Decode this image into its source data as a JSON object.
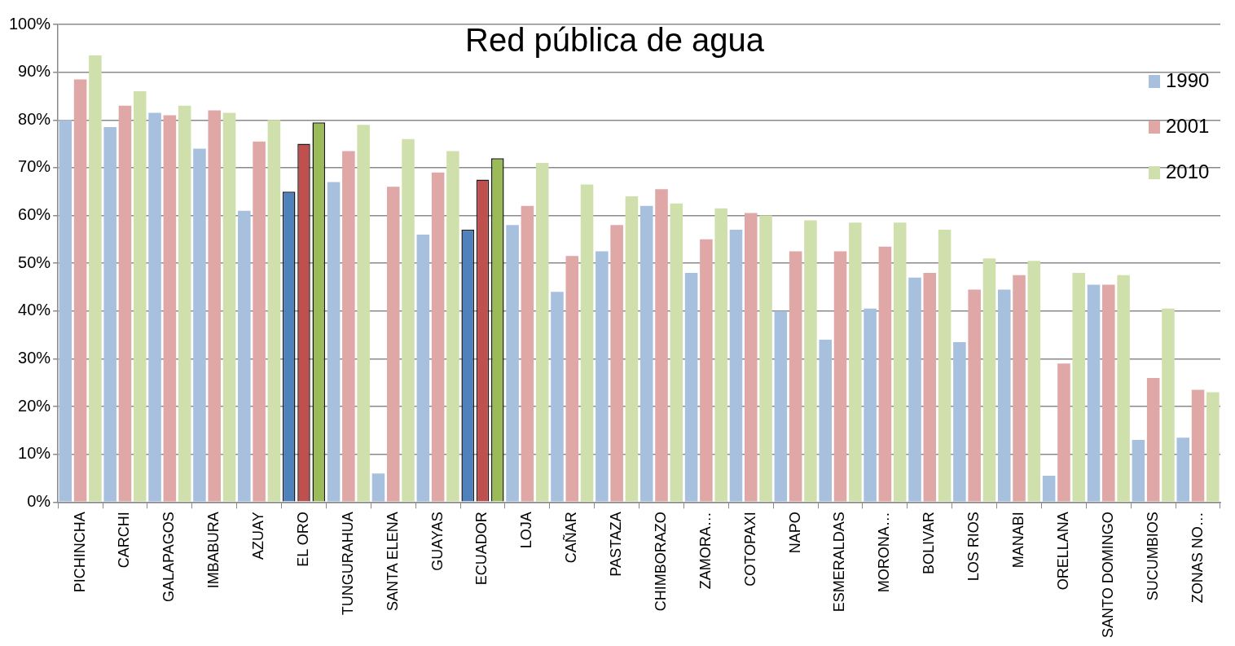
{
  "chart_data": {
    "type": "bar",
    "title": "Red pública de agua",
    "categories": [
      "PICHINCHA",
      "CARCHI",
      "GALAPAGOS",
      "IMBABURA",
      "AZUAY",
      "EL ORO",
      "TUNGURAHUA",
      "SANTA ELENA",
      "GUAYAS",
      "ECUADOR",
      "LOJA",
      "CAÑAR",
      "PASTAZA",
      "CHIMBORAZO",
      "ZAMORA…",
      "COTOPAXI",
      "NAPO",
      "ESMERALDAS",
      "MORONA…",
      "BOLIVAR",
      "LOS RIOS",
      "MANABI",
      "ORELLANA",
      "SANTO DOMINGO",
      "SUCUMBIOS",
      "ZONAS NO…"
    ],
    "series": [
      {
        "name": "1990",
        "color": "#a7c0de",
        "colors": [
          "#a7c0de",
          "#a7c0de",
          "#a7c0de",
          "#a7c0de",
          "#a7c0de",
          "#4f81bd",
          "#a7c0de",
          "#a7c0de",
          "#a7c0de",
          "#4f81bd",
          "#a7c0de",
          "#a7c0de",
          "#a7c0de",
          "#a7c0de",
          "#a7c0de",
          "#a7c0de",
          "#a7c0de",
          "#a7c0de",
          "#a7c0de",
          "#a7c0de",
          "#a7c0de",
          "#a7c0de",
          "#a7c0de",
          "#a7c0de",
          "#a7c0de",
          "#a7c0de"
        ],
        "values": [
          80,
          78.5,
          81.5,
          74,
          61,
          65,
          67,
          6,
          56,
          57,
          58,
          44,
          52.5,
          62,
          48,
          57,
          40,
          34,
          40.5,
          47,
          33.5,
          44.5,
          5.5,
          45.5,
          13,
          13.5
        ]
      },
      {
        "name": "2001",
        "color": "#dfa7a6",
        "colors": [
          "#dfa7a6",
          "#dfa7a6",
          "#dfa7a6",
          "#dfa7a6",
          "#dfa7a6",
          "#c0504d",
          "#dfa7a6",
          "#dfa7a6",
          "#dfa7a6",
          "#c0504d",
          "#dfa7a6",
          "#dfa7a6",
          "#dfa7a6",
          "#dfa7a6",
          "#dfa7a6",
          "#dfa7a6",
          "#dfa7a6",
          "#dfa7a6",
          "#dfa7a6",
          "#dfa7a6",
          "#dfa7a6",
          "#dfa7a6",
          "#dfa7a6",
          "#dfa7a6",
          "#dfa7a6",
          "#dfa7a6"
        ],
        "values": [
          88.5,
          83,
          81,
          82,
          75.5,
          75,
          73.5,
          66,
          69,
          67.5,
          62,
          51.5,
          58,
          65.5,
          55,
          60.5,
          52.5,
          52.5,
          53.5,
          48,
          44.5,
          47.5,
          29,
          45.5,
          26,
          23.5
        ]
      },
      {
        "name": "2010",
        "color": "#d0e0ac",
        "colors": [
          "#d0e0ac",
          "#d0e0ac",
          "#d0e0ac",
          "#d0e0ac",
          "#d0e0ac",
          "#9bbb59",
          "#d0e0ac",
          "#d0e0ac",
          "#d0e0ac",
          "#9bbb59",
          "#d0e0ac",
          "#d0e0ac",
          "#d0e0ac",
          "#d0e0ac",
          "#d0e0ac",
          "#d0e0ac",
          "#d0e0ac",
          "#d0e0ac",
          "#d0e0ac",
          "#d0e0ac",
          "#d0e0ac",
          "#d0e0ac",
          "#d0e0ac",
          "#d0e0ac",
          "#d0e0ac",
          "#d0e0ac"
        ],
        "values": [
          93.5,
          86,
          83,
          81.5,
          80,
          79.5,
          79,
          76,
          73.5,
          72,
          71,
          66.5,
          64,
          62.5,
          61.5,
          60,
          59,
          58.5,
          58.5,
          57,
          51,
          50.5,
          48,
          47.5,
          40.5,
          23
        ]
      }
    ],
    "ylim": [
      0,
      100
    ],
    "yticks": [
      {
        "value": 0,
        "label": "0%"
      },
      {
        "value": 10,
        "label": "10%"
      },
      {
        "value": 20,
        "label": "20%"
      },
      {
        "value": 30,
        "label": "30%"
      },
      {
        "value": 40,
        "label": "40%"
      },
      {
        "value": 50,
        "label": "50%"
      },
      {
        "value": 60,
        "label": "60%"
      },
      {
        "value": 70,
        "label": "70%"
      },
      {
        "value": 80,
        "label": "80%"
      },
      {
        "value": 90,
        "label": "90%"
      },
      {
        "value": 100,
        "label": "100%"
      }
    ],
    "grid": "y",
    "legend": "top right"
  }
}
